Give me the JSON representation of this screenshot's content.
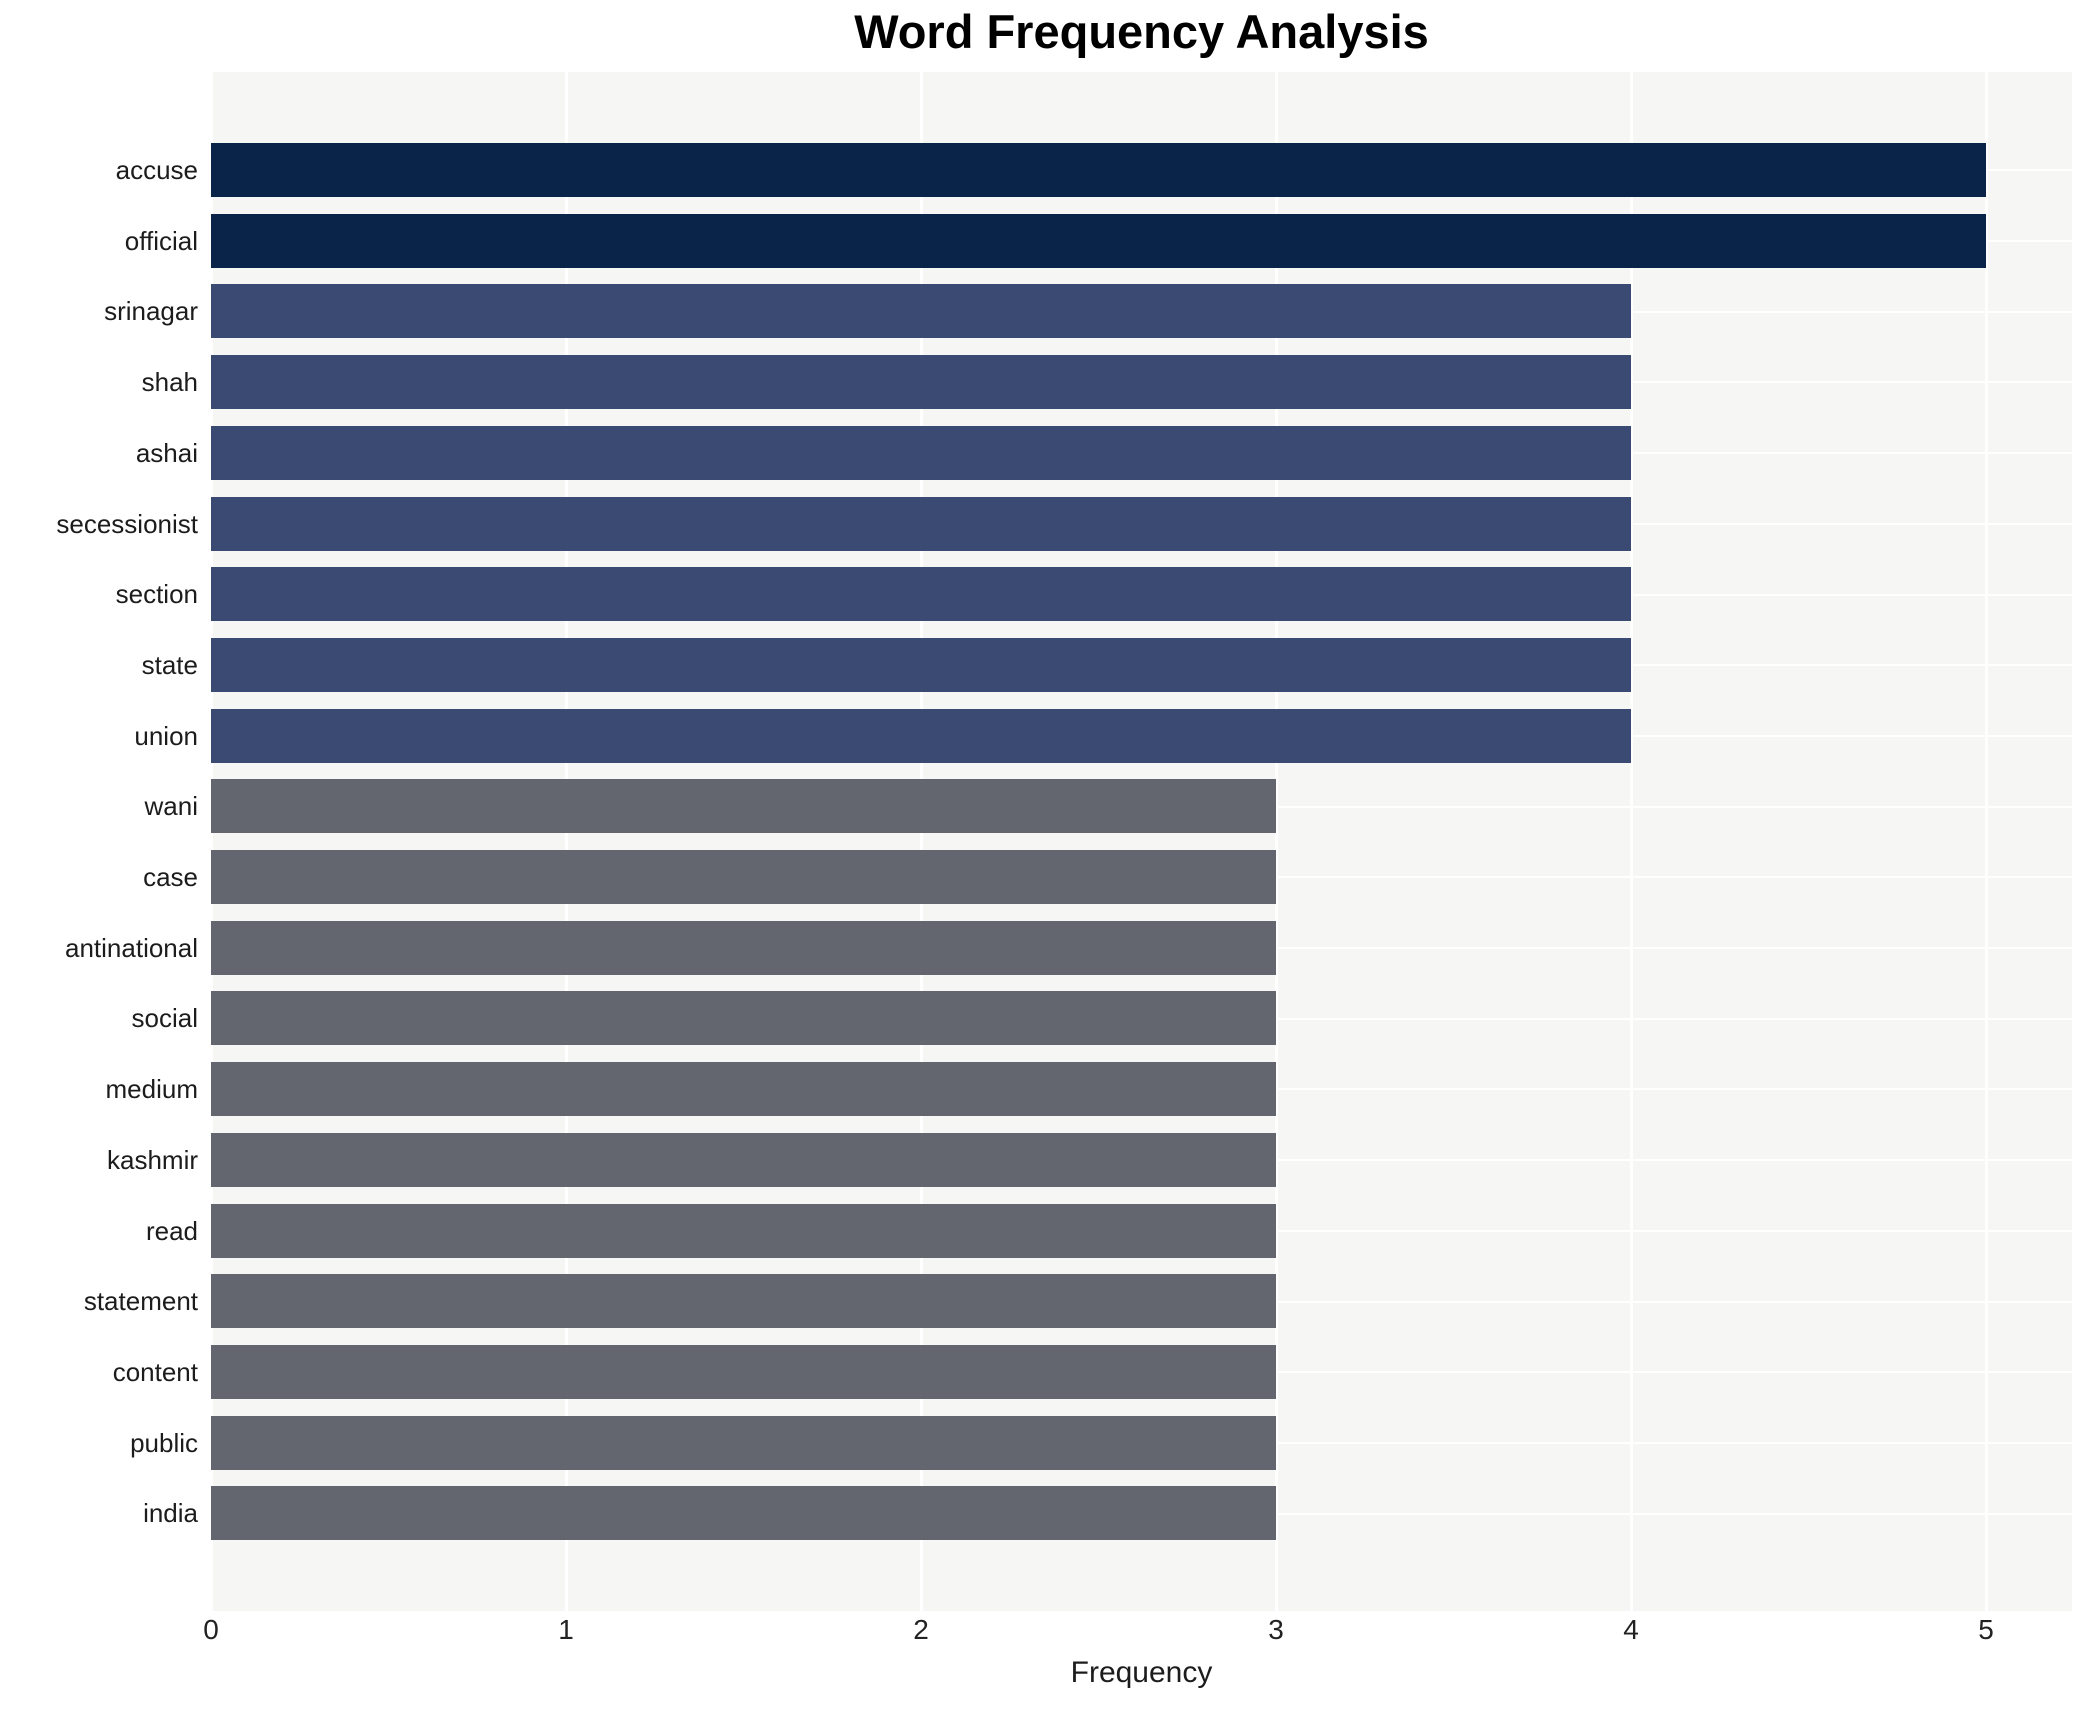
{
  "title": "Word Frequency Analysis",
  "chart_data": {
    "type": "bar",
    "orientation": "horizontal",
    "title": "Word Frequency Analysis",
    "xlabel": "Frequency",
    "ylabel": "",
    "xlim": [
      0,
      5.24
    ],
    "xticks": [
      0,
      1,
      2,
      3,
      4,
      5
    ],
    "grid": true,
    "legend": false,
    "categories": [
      "accuse",
      "official",
      "srinagar",
      "shah",
      "ashai",
      "secessionist",
      "section",
      "state",
      "union",
      "wani",
      "case",
      "antinational",
      "social",
      "medium",
      "kashmir",
      "read",
      "statement",
      "content",
      "public",
      "india"
    ],
    "values": [
      5,
      5,
      4,
      4,
      4,
      4,
      4,
      4,
      4,
      3,
      3,
      3,
      3,
      3,
      3,
      3,
      3,
      3,
      3,
      3
    ],
    "color_by_value": {
      "5": "#0a2348",
      "4": "#3a4a72",
      "3": "#63666e"
    }
  },
  "style": {
    "panel_bg": "#f6f6f5",
    "grid_color": "#ffffff",
    "title_color": "#000000",
    "label_color": "#1c1c1c",
    "tick_color": "#222222"
  }
}
